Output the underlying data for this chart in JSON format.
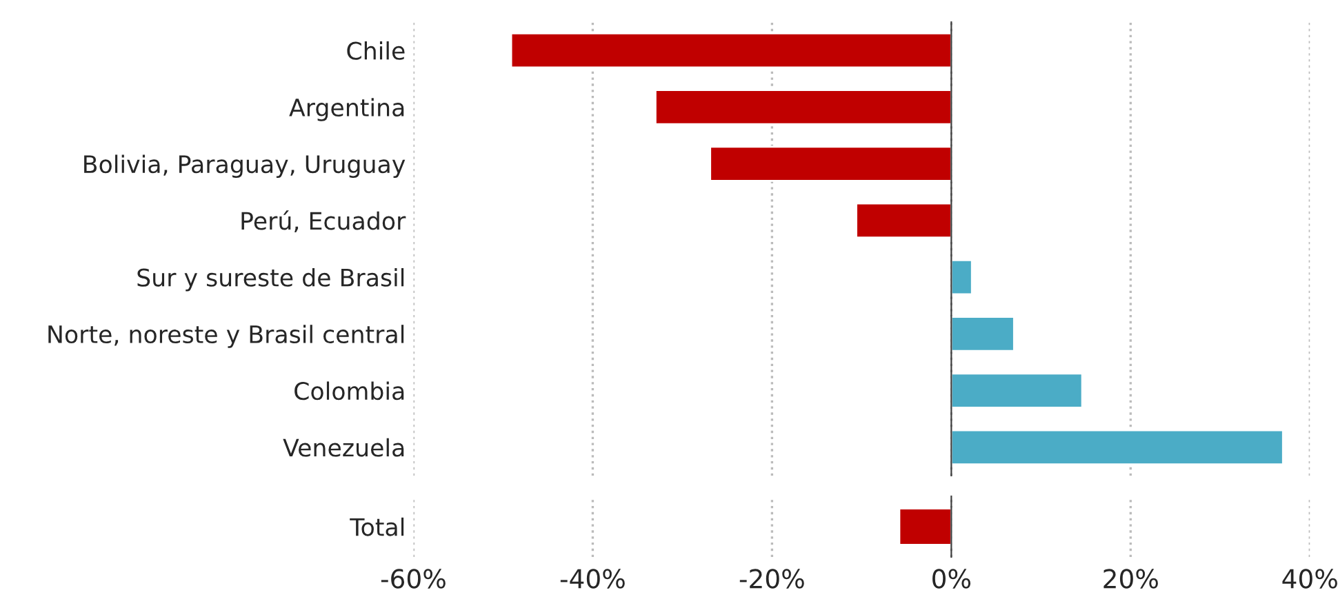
{
  "chart_data": [
    {
      "type": "bar",
      "orientation": "horizontal",
      "categories": [
        "Chile",
        "Argentina",
        "Bolivia, Paraguay, Uruguay",
        "Perú, Ecuador",
        "Sur y sureste de Brasil",
        "Norte, noreste y Brasil central",
        "Colombia",
        "Venezuela"
      ],
      "values": [
        -49.1,
        -33.0,
        -26.9,
        -10.6,
        2.3,
        7.0,
        14.6,
        37.0
      ],
      "colors": [
        "#c00000",
        "#c00000",
        "#c00000",
        "#c00000",
        "#4bacc6",
        "#4bacc6",
        "#4bacc6",
        "#4bacc6"
      ],
      "xlim": [
        -60,
        40
      ],
      "xticks": [
        {
          "value": -60,
          "label": null
        },
        {
          "value": -40,
          "label": null
        },
        {
          "value": -20,
          "label": null
        },
        {
          "value": 0,
          "label": null
        },
        {
          "value": 20,
          "label": null
        },
        {
          "value": 40,
          "label": null
        }
      ],
      "grid": "x",
      "tick_labels": "y"
    },
    {
      "type": "bar",
      "orientation": "horizontal",
      "categories": [
        "Total"
      ],
      "values": [
        -5.8
      ],
      "colors": [
        "#c00000"
      ],
      "xlim": [
        -60,
        40
      ],
      "xticks": [
        {
          "value": -60,
          "label": "-60%"
        },
        {
          "value": -40,
          "label": "-40%"
        },
        {
          "value": -20,
          "label": "-20%"
        },
        {
          "value": 0,
          "label": "0%"
        },
        {
          "value": 20,
          "label": "20%"
        },
        {
          "value": 40,
          "label": "40%"
        }
      ],
      "grid": "x"
    }
  ]
}
